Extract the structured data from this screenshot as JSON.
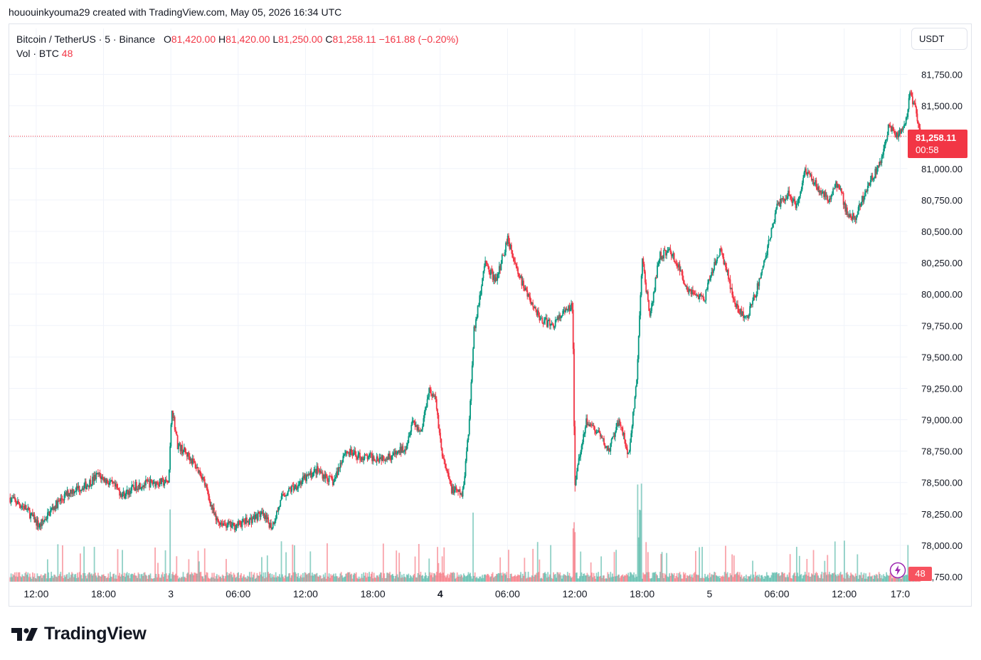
{
  "header": {
    "author_line": "hououinkyouma29 created with TradingView.com, May 05, 2026 16:34 UTC"
  },
  "legend": {
    "symbol": "Bitcoin / TetherUS · 5 · Binance",
    "o_label": "O",
    "o_value": "81,420.00",
    "h_label": "H",
    "h_value": "81,420.00",
    "l_label": "L",
    "l_value": "81,250.00",
    "c_label": "C",
    "c_value": "81,258.11",
    "change": "−161.88 (−0.20%)",
    "vol_label": "Vol · BTC",
    "vol_value": "48"
  },
  "currency_button": "USDT",
  "last_price": {
    "value": "81,258.11",
    "countdown": "00:58"
  },
  "volume_tag": "48",
  "footer": {
    "brand": "TradingView"
  },
  "colors": {
    "up": "#089981",
    "down": "#f23645",
    "grid": "#f0f3fa",
    "text": "#131722"
  },
  "chart_data": {
    "type": "candlestick",
    "title": "Bitcoin / TetherUS · 5 · Binance",
    "y_axis_ticks": [
      "81,750.00",
      "81,500.00",
      "81,250.00",
      "81,000.00",
      "80,750.00",
      "80,500.00",
      "80,250.00",
      "80,000.00",
      "79,750.00",
      "79,500.00",
      "79,250.00",
      "79,000.00",
      "78,750.00",
      "78,500.00",
      "78,250.00",
      "78,000.00",
      "77,750.00"
    ],
    "y_axis_values": [
      81750,
      81500,
      81250,
      81000,
      80750,
      80500,
      80250,
      80000,
      79750,
      79500,
      79250,
      79000,
      78750,
      78500,
      78250,
      78000,
      77750
    ],
    "x_axis_ticks": [
      "12:00",
      "18:00",
      "3",
      "06:00",
      "12:00",
      "18:00",
      "4",
      "06:00",
      "12:00",
      "18:00",
      "5",
      "06:00",
      "12:00",
      "17:0"
    ],
    "x_axis_hours": [
      12,
      18,
      24,
      30,
      36,
      42,
      48,
      54,
      60,
      66,
      72,
      78,
      84,
      89
    ],
    "x_range_hours": [
      9.6,
      89.6
    ],
    "ylim": [
      77750,
      81850
    ],
    "last_price": 81258.11,
    "price_path": [
      [
        9.6,
        78380
      ],
      [
        11,
        78300
      ],
      [
        12.3,
        78150
      ],
      [
        13.5,
        78300
      ],
      [
        15,
        78430
      ],
      [
        16.5,
        78480
      ],
      [
        17.5,
        78560
      ],
      [
        18.5,
        78500
      ],
      [
        19.8,
        78400
      ],
      [
        21,
        78480
      ],
      [
        22.5,
        78500
      ],
      [
        23.8,
        78500
      ],
      [
        24.1,
        79100
      ],
      [
        24.6,
        78800
      ],
      [
        25.7,
        78700
      ],
      [
        26.8,
        78550
      ],
      [
        28,
        78200
      ],
      [
        29.5,
        78150
      ],
      [
        31,
        78200
      ],
      [
        32,
        78250
      ],
      [
        33,
        78150
      ],
      [
        34,
        78400
      ],
      [
        35.5,
        78500
      ],
      [
        37,
        78600
      ],
      [
        38.5,
        78500
      ],
      [
        39.5,
        78750
      ],
      [
        41,
        78700
      ],
      [
        42.5,
        78700
      ],
      [
        44,
        78720
      ],
      [
        45,
        78800
      ],
      [
        45.5,
        79000
      ],
      [
        46.3,
        78900
      ],
      [
        47,
        79250
      ],
      [
        47.6,
        79150
      ],
      [
        48.2,
        78700
      ],
      [
        49,
        78450
      ],
      [
        50,
        78400
      ],
      [
        50.6,
        79000
      ],
      [
        51,
        79700
      ],
      [
        52,
        80250
      ],
      [
        53,
        80100
      ],
      [
        54,
        80450
      ],
      [
        55,
        80150
      ],
      [
        56,
        79950
      ],
      [
        57,
        79800
      ],
      [
        58,
        79750
      ],
      [
        59,
        79850
      ],
      [
        59.8,
        79900
      ],
      [
        60,
        78500
      ],
      [
        60.4,
        78700
      ],
      [
        61,
        79000
      ],
      [
        62,
        78900
      ],
      [
        63,
        78750
      ],
      [
        64,
        79000
      ],
      [
        64.8,
        78700
      ],
      [
        65.5,
        79300
      ],
      [
        66,
        80300
      ],
      [
        66.7,
        79800
      ],
      [
        67.5,
        80300
      ],
      [
        68.5,
        80350
      ],
      [
        69.3,
        80200
      ],
      [
        70,
        80050
      ],
      [
        70.8,
        80000
      ],
      [
        71.5,
        79950
      ],
      [
        72.3,
        80200
      ],
      [
        73,
        80350
      ],
      [
        73.5,
        80200
      ],
      [
        74.3,
        79900
      ],
      [
        75.3,
        79800
      ],
      [
        76.1,
        80000
      ],
      [
        77,
        80300
      ],
      [
        78,
        80700
      ],
      [
        79,
        80800
      ],
      [
        79.8,
        80700
      ],
      [
        80.5,
        81000
      ],
      [
        81.3,
        80900
      ],
      [
        82.5,
        80750
      ],
      [
        83.5,
        80900
      ],
      [
        84.2,
        80650
      ],
      [
        85,
        80600
      ],
      [
        86,
        80850
      ],
      [
        87.3,
        81050
      ],
      [
        88,
        81350
      ],
      [
        88.8,
        81250
      ],
      [
        89.6,
        81400
      ],
      [
        89.8,
        81600
      ],
      [
        90.3,
        81500
      ],
      [
        90.8,
        81258
      ]
    ]
  }
}
